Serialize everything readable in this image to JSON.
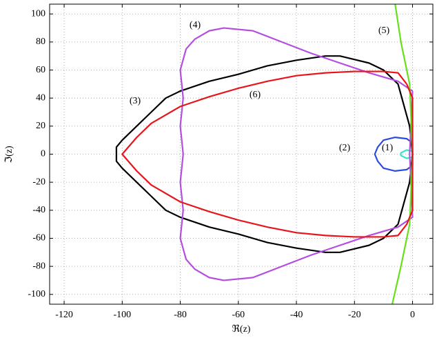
{
  "chart_data": {
    "type": "line",
    "xlabel": "ℜ(z)",
    "ylabel": "ℑ(z)",
    "xlim": [
      -125,
      7
    ],
    "ylim": [
      -107,
      107
    ],
    "xticks": [
      -120,
      -100,
      -80,
      -60,
      -40,
      -20,
      0
    ],
    "yticks": [
      -100,
      -80,
      -60,
      -40,
      -20,
      0,
      20,
      40,
      60,
      80,
      100
    ],
    "grid": true,
    "series": [
      {
        "name": "(1)",
        "color": "#40e0d0",
        "x": [
          0,
          -2,
          -4,
          -4,
          -2,
          0,
          0
        ],
        "values": [
          2,
          3,
          1,
          -1,
          -3,
          -2,
          2
        ]
      },
      {
        "name": "(2)",
        "color": "#2b4bdc",
        "x": [
          0,
          -2,
          -6,
          -10,
          -12,
          -13,
          -12,
          -10,
          -6,
          -2,
          0,
          0
        ],
        "values": [
          8,
          11,
          12,
          10,
          5,
          0,
          -5,
          -10,
          -12,
          -11,
          -8,
          8
        ]
      },
      {
        "name": "(3)",
        "color": "#000000",
        "x": [
          -1,
          -5,
          -10,
          -15,
          -25,
          -30,
          -40,
          -50,
          -60,
          -70,
          -80,
          -85,
          -90,
          -95,
          -100,
          -102,
          -102,
          -100,
          -95,
          -90,
          -85,
          -80,
          -70,
          -60,
          -50,
          -40,
          -30,
          -25,
          -15,
          -10,
          -5,
          -1,
          0,
          -1
        ],
        "values": [
          20,
          50,
          60,
          65,
          70,
          70,
          67,
          63,
          57,
          52,
          45,
          40,
          30,
          20,
          10,
          5,
          -5,
          -10,
          -20,
          -30,
          -40,
          -45,
          -52,
          -57,
          -63,
          -67,
          -70,
          -70,
          -65,
          -60,
          -50,
          -20,
          0,
          20
        ]
      },
      {
        "name": "(4)",
        "color": "#b44ee0",
        "x": [
          0,
          -5,
          -15,
          -25,
          -35,
          -45,
          -55,
          -65,
          -70,
          -75,
          -78,
          -80,
          -79,
          -80,
          -79,
          -80,
          -79,
          -80,
          -78,
          -75,
          -70,
          -65,
          -55,
          -45,
          -35,
          -25,
          -15,
          -5,
          0,
          -1,
          0
        ],
        "values": [
          45,
          52,
          58,
          65,
          72,
          80,
          88,
          90,
          88,
          82,
          75,
          60,
          40,
          20,
          0,
          -20,
          -40,
          -60,
          -75,
          -82,
          -88,
          -90,
          -88,
          -80,
          -72,
          -65,
          -58,
          -52,
          -45,
          0,
          45
        ]
      },
      {
        "name": "(5)",
        "color": "#66e01a",
        "x": [
          -7,
          -4,
          -1,
          0,
          -1,
          -4,
          -6
        ],
        "values": [
          -107,
          -80,
          -50,
          0,
          50,
          80,
          107
        ]
      },
      {
        "name": "(6)",
        "color": "#e8141c",
        "x": [
          -2,
          -5,
          -10,
          -20,
          -30,
          -40,
          -50,
          -60,
          -70,
          -80,
          -90,
          -95,
          -100,
          -95,
          -90,
          -80,
          -70,
          -60,
          -50,
          -40,
          -30,
          -20,
          -10,
          -5,
          -2,
          0,
          0,
          -2
        ],
        "values": [
          50,
          58,
          59,
          59,
          58,
          56,
          52,
          47,
          41,
          34,
          22,
          12,
          0,
          -12,
          -22,
          -34,
          -41,
          -47,
          -52,
          -56,
          -58,
          -59,
          -59,
          -58,
          -50,
          -40,
          40,
          50
        ]
      }
    ]
  }
}
